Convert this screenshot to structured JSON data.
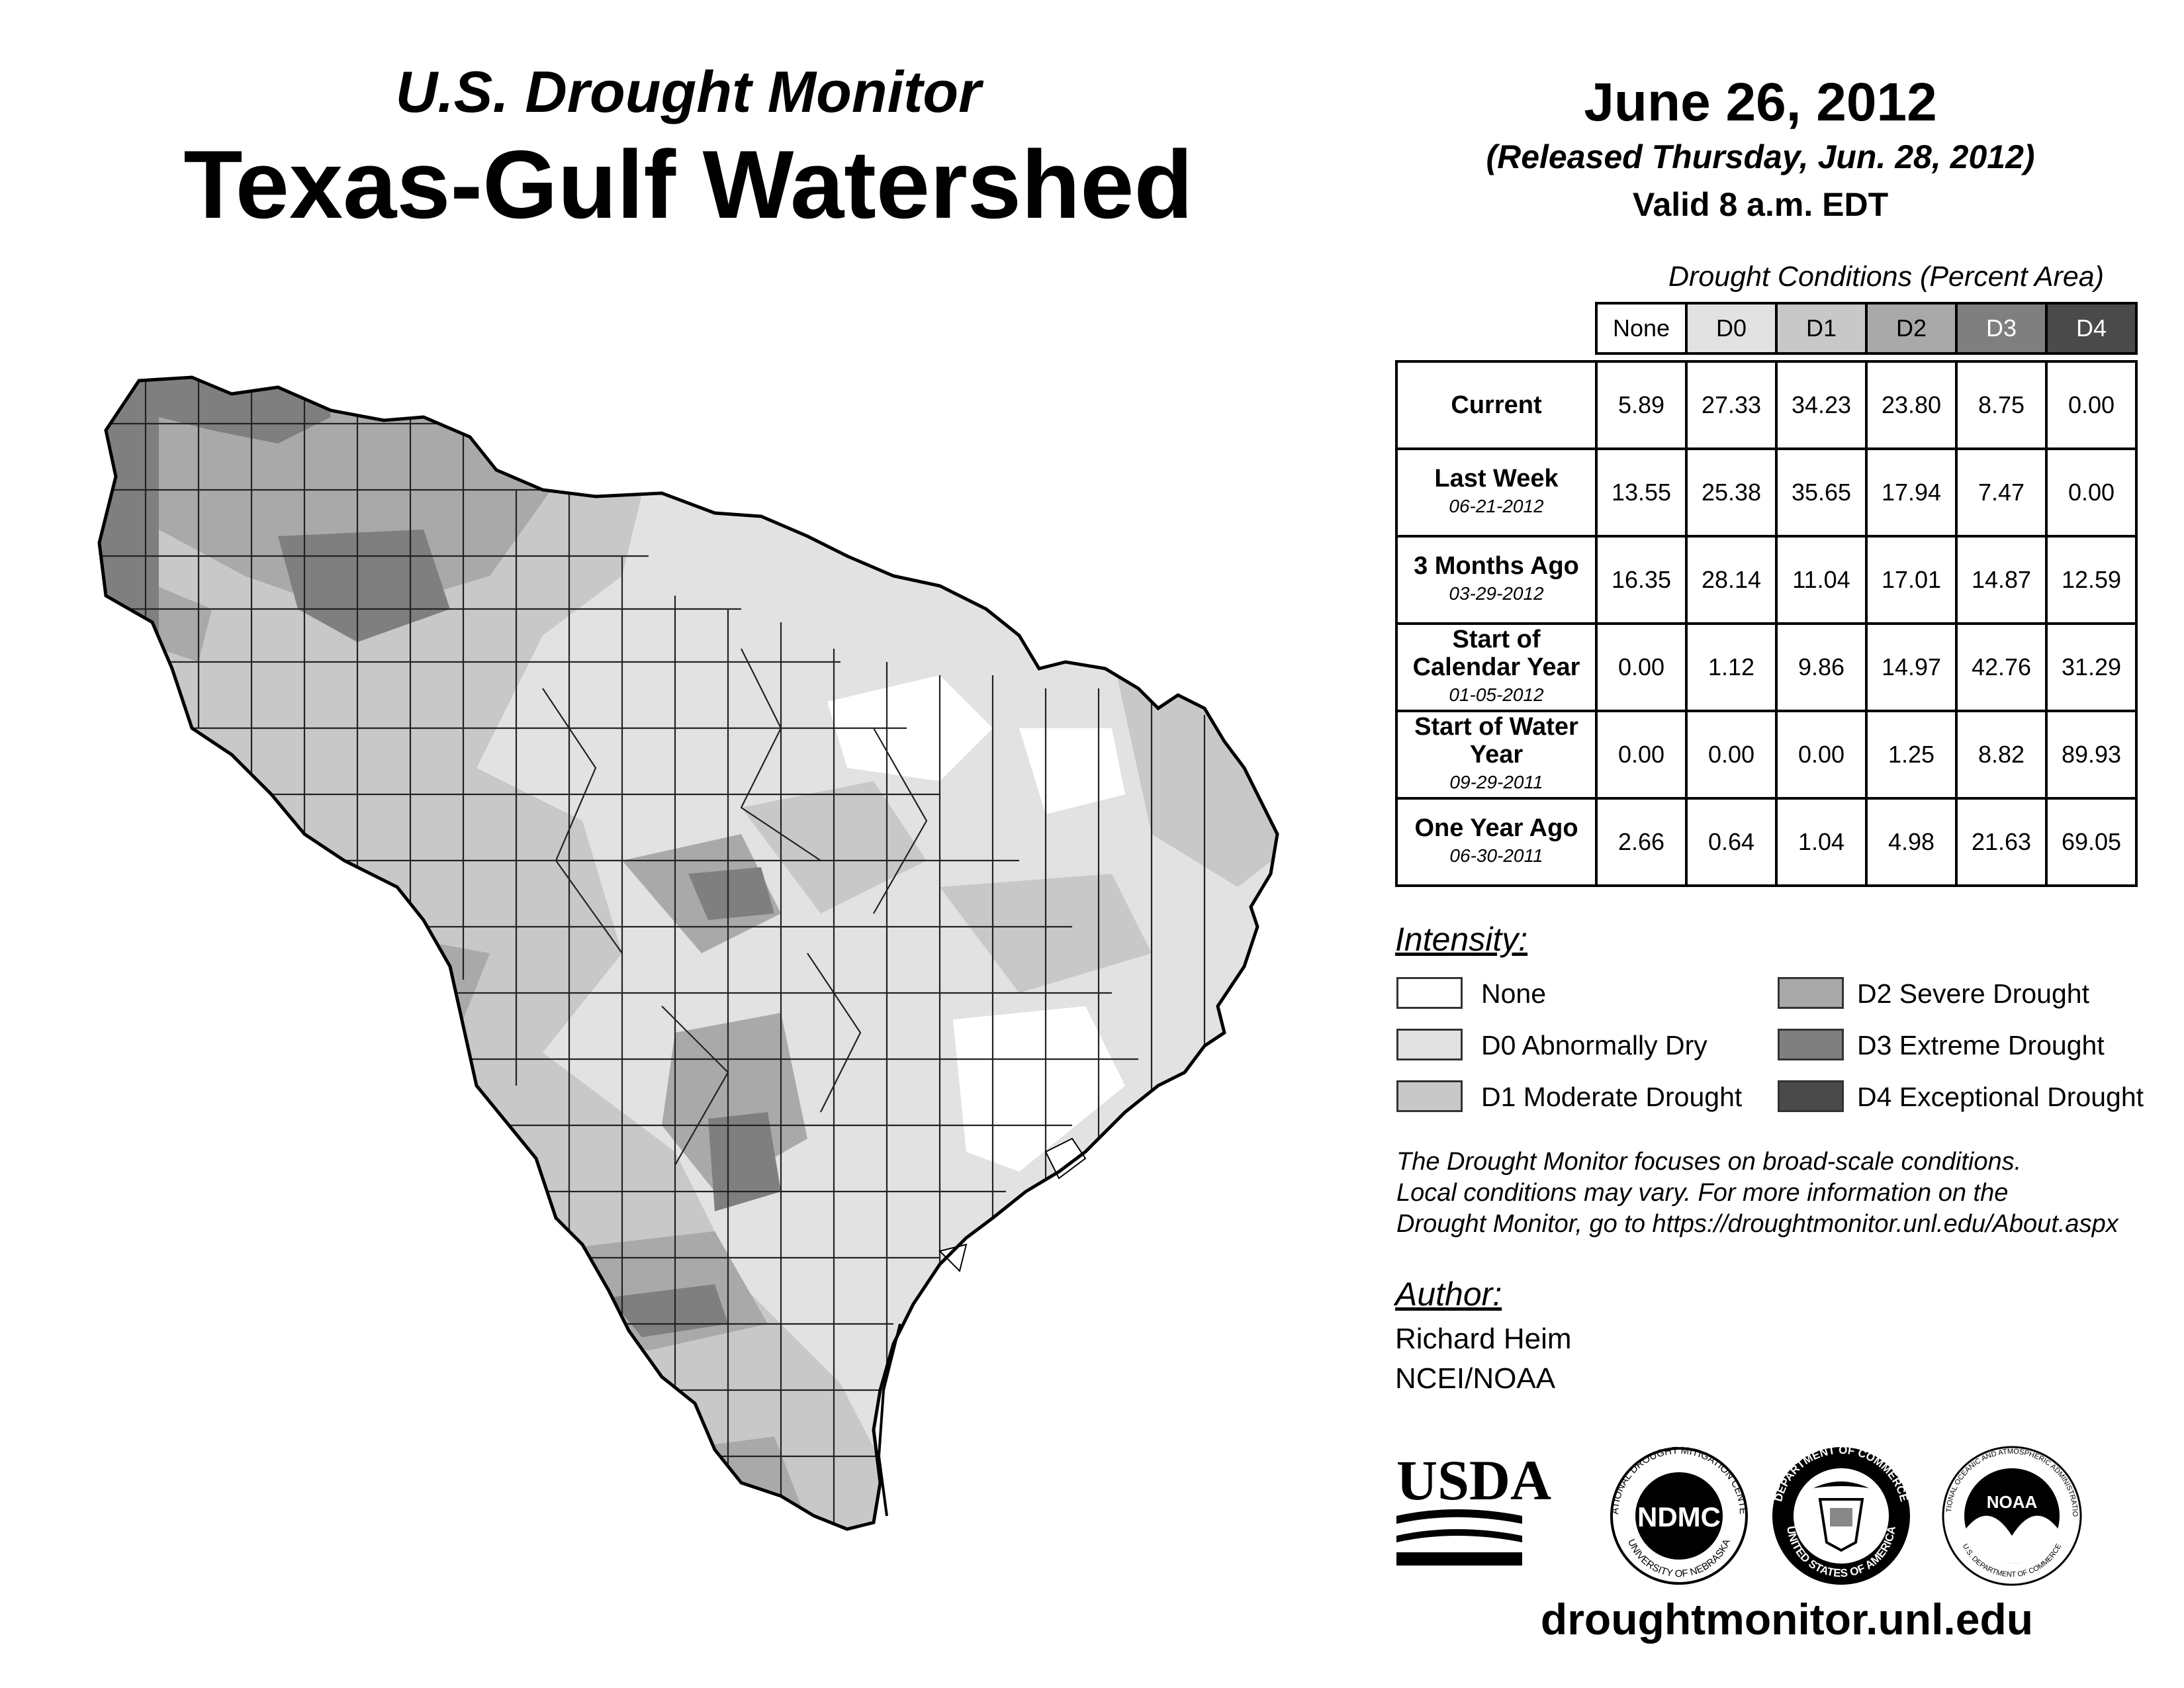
{
  "header": {
    "subtitle": "U.S. Drought Monitor",
    "title": "Texas-Gulf Watershed",
    "date": "June 26, 2012",
    "released": "(Released Thursday, Jun. 28, 2012)",
    "valid": "Valid 8 a.m. EDT"
  },
  "table": {
    "caption": "Drought Conditions (Percent Area)",
    "columns": [
      "None",
      "D0",
      "D1",
      "D2",
      "D3",
      "D4"
    ],
    "rows": [
      {
        "label": "Current",
        "date": "",
        "values": [
          "5.89",
          "27.33",
          "34.23",
          "23.80",
          "8.75",
          "0.00"
        ]
      },
      {
        "label": "Last Week",
        "date": "06-21-2012",
        "values": [
          "13.55",
          "25.38",
          "35.65",
          "17.94",
          "7.47",
          "0.00"
        ]
      },
      {
        "label": "3 Months Ago",
        "date": "03-29-2012",
        "values": [
          "16.35",
          "28.14",
          "11.04",
          "17.01",
          "14.87",
          "12.59"
        ]
      },
      {
        "label": "Start of Calendar Year",
        "date": "01-05-2012",
        "values": [
          "0.00",
          "1.12",
          "9.86",
          "14.97",
          "42.76",
          "31.29"
        ]
      },
      {
        "label": "Start of Water Year",
        "date": "09-29-2011",
        "values": [
          "0.00",
          "0.00",
          "0.00",
          "1.25",
          "8.82",
          "89.93"
        ]
      },
      {
        "label": "One Year Ago",
        "date": "06-30-2011",
        "values": [
          "2.66",
          "0.64",
          "1.04",
          "4.98",
          "21.63",
          "69.05"
        ]
      }
    ]
  },
  "legend": {
    "label": "Intensity:",
    "items": [
      {
        "name": "None",
        "color": "#ffffff"
      },
      {
        "name": "D0 Abnormally Dry",
        "color": "#e2e2e2"
      },
      {
        "name": "D1 Moderate Drought",
        "color": "#c8c8c8"
      },
      {
        "name": "D2 Severe Drought",
        "color": "#a9a9a9"
      },
      {
        "name": "D3 Extreme Drought",
        "color": "#7f7f7f"
      },
      {
        "name": "D4 Exceptional Drought",
        "color": "#4a4a4a"
      }
    ]
  },
  "note": {
    "line1": "The Drought Monitor focuses on broad-scale conditions.",
    "line2": "Local conditions may vary. For more information on the",
    "line3": "Drought Monitor, go to https://droughtmonitor.unl.edu/About.aspx"
  },
  "author": {
    "label": "Author:",
    "name": "Richard Heim",
    "org": "NCEI/NOAA"
  },
  "logos": {
    "usda": "USDA",
    "ndmc": "NDMC",
    "ndmc_ring_top": "NATIONAL DROUGHT MITIGATION CENTER",
    "ndmc_ring_bottom": "UNIVERSITY OF NEBRASKA",
    "doc_ring_top": "DEPARTMENT OF COMMERCE",
    "doc_ring_bottom": "UNITED STATES OF AMERICA",
    "noaa": "NOAA",
    "noaa_ring_top": "NATIONAL OCEANIC AND ATMOSPHERIC ADMINISTRATION",
    "noaa_ring_bottom": "U.S. DEPARTMENT OF COMMERCE"
  },
  "website": "droughtmonitor.unl.edu"
}
